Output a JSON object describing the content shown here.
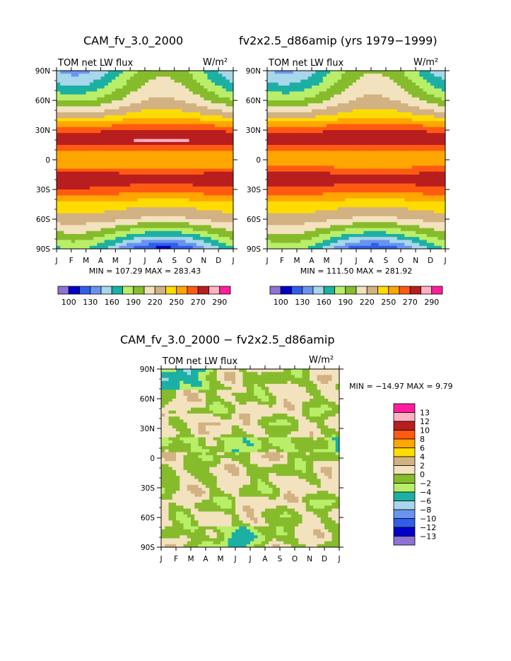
{
  "header": {
    "model_title": "CAM_fv_3.0_2000",
    "control_title": "fv2x2.5_d86amip (yrs 1979−1999)",
    "diff_title": "CAM_fv_3.0_2000 − fv2x2.5_d86amip"
  },
  "chart_data": [
    {
      "id": "model",
      "type": "heatmap",
      "title": "CAM_fv_3.0_2000",
      "variable": "TOM net LW flux",
      "units": "W/m²",
      "x_ticks": [
        "J",
        "F",
        "M",
        "A",
        "M",
        "J",
        "J",
        "A",
        "S",
        "O",
        "N",
        "D",
        "J"
      ],
      "y_ticks": [
        "90N",
        "60N",
        "30N",
        "0",
        "30S",
        "60S",
        "90S"
      ],
      "ylim": [
        -90,
        90
      ],
      "stats_text": "MIN = 107.29 MAX = 283.43",
      "min": 107.29,
      "max": 283.43,
      "levels": [
        100,
        110,
        120,
        130,
        140,
        150,
        160,
        170,
        180,
        190,
        200,
        210,
        220,
        230,
        240,
        250,
        260,
        270,
        280,
        290
      ],
      "colorbar_labels": [
        "100",
        "130",
        "160",
        "190",
        "220",
        "250",
        "270",
        "290"
      ],
      "colors": [
        "#8e72d8",
        "#0000c8",
        "#2e5fe8",
        "#6a93f0",
        "#a8d6ea",
        "#1cb0a4",
        "#b8ee68",
        "#86bc2c",
        "#f3e2be",
        "#d2b282",
        "#ffdc00",
        "#ffa600",
        "#ff5a12",
        "#b81e1e",
        "#ffb2c2",
        "#ff1e9e"
      ],
      "profile": [
        {
          "lat": 90,
          "amp": 25,
          "v": 168
        },
        {
          "lat": 75,
          "amp": 25,
          "v": 180
        },
        {
          "lat": 60,
          "amp": 22,
          "v": 196
        },
        {
          "lat": 45,
          "amp": 15,
          "v": 220
        },
        {
          "lat": 30,
          "amp": 9,
          "v": 256
        },
        {
          "lat": 20,
          "amp": 10,
          "v": 268
        },
        {
          "lat": 10,
          "amp": 6,
          "v": 244
        },
        {
          "lat": 0,
          "amp": 5,
          "v": 230
        },
        {
          "lat": -8,
          "amp": 7,
          "v": 244
        },
        {
          "lat": -18,
          "amp": 12,
          "v": 266
        },
        {
          "lat": -30,
          "amp": 8,
          "v": 252
        },
        {
          "lat": -45,
          "amp": 6,
          "v": 226
        },
        {
          "lat": -60,
          "amp": 8,
          "v": 210
        },
        {
          "lat": -75,
          "amp": 18,
          "v": 180
        },
        {
          "lat": -90,
          "amp": 28,
          "v": 146
        }
      ]
    },
    {
      "id": "control",
      "type": "heatmap",
      "title": "fv2x2.5_d86amip (yrs 1979−1999)",
      "variable": "TOM net LW flux",
      "units": "W/m²",
      "x_ticks": [
        "J",
        "F",
        "M",
        "A",
        "M",
        "J",
        "J",
        "A",
        "S",
        "O",
        "N",
        "D",
        "J"
      ],
      "y_ticks": [
        "90N",
        "60N",
        "30N",
        "0",
        "30S",
        "60S",
        "90S"
      ],
      "ylim": [
        -90,
        90
      ],
      "stats_text": "MIN = 111.50 MAX = 281.92",
      "min": 111.5,
      "max": 281.92,
      "levels": [
        100,
        110,
        120,
        130,
        140,
        150,
        160,
        170,
        180,
        190,
        200,
        210,
        220,
        230,
        240,
        250,
        260,
        270,
        280,
        290
      ],
      "colorbar_labels": [
        "100",
        "130",
        "160",
        "190",
        "220",
        "250",
        "270",
        "290"
      ],
      "colors": [
        "#8e72d8",
        "#0000c8",
        "#2e5fe8",
        "#6a93f0",
        "#a8d6ea",
        "#1cb0a4",
        "#b8ee68",
        "#86bc2c",
        "#f3e2be",
        "#d2b282",
        "#ffdc00",
        "#ffa600",
        "#ff5a12",
        "#b81e1e",
        "#ffb2c2",
        "#ff1e9e"
      ],
      "profile": [
        {
          "lat": 90,
          "amp": 25,
          "v": 170
        },
        {
          "lat": 75,
          "amp": 25,
          "v": 182
        },
        {
          "lat": 60,
          "amp": 22,
          "v": 197
        },
        {
          "lat": 45,
          "amp": 15,
          "v": 220
        },
        {
          "lat": 30,
          "amp": 9,
          "v": 255
        },
        {
          "lat": 20,
          "amp": 10,
          "v": 267
        },
        {
          "lat": 10,
          "amp": 6,
          "v": 244
        },
        {
          "lat": 0,
          "amp": 5,
          "v": 231
        },
        {
          "lat": -8,
          "amp": 7,
          "v": 245
        },
        {
          "lat": -18,
          "amp": 12,
          "v": 265
        },
        {
          "lat": -30,
          "amp": 8,
          "v": 251
        },
        {
          "lat": -45,
          "amp": 6,
          "v": 226
        },
        {
          "lat": -60,
          "amp": 8,
          "v": 210
        },
        {
          "lat": -75,
          "amp": 18,
          "v": 182
        },
        {
          "lat": -90,
          "amp": 28,
          "v": 150
        }
      ]
    },
    {
      "id": "difference",
      "type": "heatmap",
      "title": "CAM_fv_3.0_2000 − fv2x2.5_d86amip",
      "variable": "TOM net LW flux",
      "units": "W/m²",
      "x_ticks": [
        "J",
        "F",
        "M",
        "A",
        "M",
        "J",
        "J",
        "A",
        "S",
        "O",
        "N",
        "D",
        "J"
      ],
      "y_ticks": [
        "90N",
        "60N",
        "30N",
        "0",
        "30S",
        "60S",
        "90S"
      ],
      "ylim": [
        -90,
        90
      ],
      "stats_text": "MIN = −14.97 MAX =    9.79",
      "min": -14.97,
      "max": 9.79,
      "levels": [
        -13,
        -12,
        -10,
        -8,
        -6,
        -4,
        -2,
        0,
        2,
        4,
        6,
        8,
        10,
        12,
        13
      ],
      "colorbar_labels": [
        "13",
        "12",
        "10",
        "8",
        "6",
        "4",
        "2",
        "0",
        "−2",
        "−4",
        "−6",
        "−8",
        "−10",
        "−12",
        "−13"
      ],
      "colors": [
        "#ff1e9e",
        "#ffb2c2",
        "#b81e1e",
        "#ff5a12",
        "#ffa600",
        "#ffdc00",
        "#d2b282",
        "#f3e2be",
        "#86bc2c",
        "#b8ee68",
        "#1cb0a4",
        "#a8d6ea",
        "#6a93f0",
        "#2e5fe8",
        "#0000c8",
        "#8e72d8"
      ]
    }
  ]
}
